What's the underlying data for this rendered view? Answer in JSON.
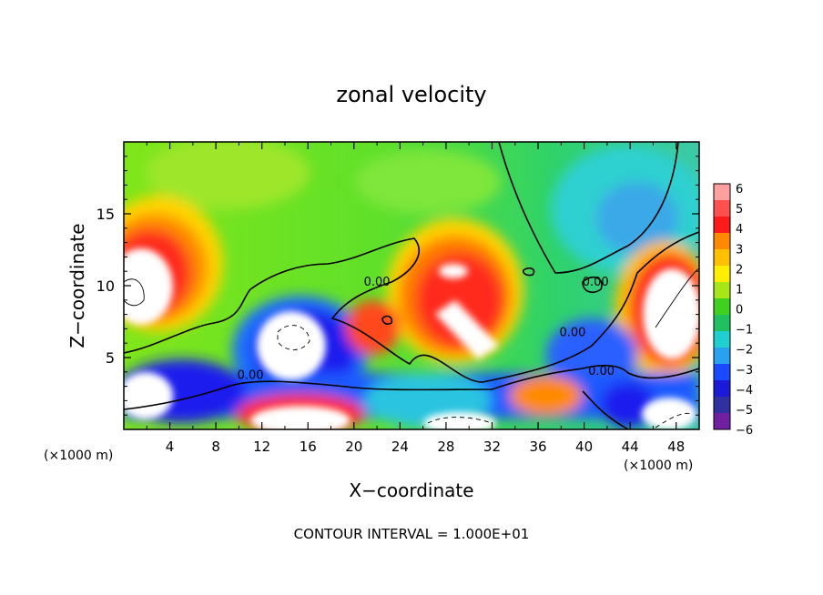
{
  "chart_data": {
    "type": "heatmap",
    "title": "zonal velocity",
    "xlabel": "X−coordinate",
    "ylabel": "Z−coordinate",
    "x_unit_label_left": "(×1000 m)",
    "x_unit_label_right": "(×1000 m)",
    "footer": "CONTOUR INTERVAL = 1.000E+01",
    "xlim": [
      0,
      50
    ],
    "ylim": [
      0,
      20
    ],
    "x_ticks": [
      "4",
      "8",
      "12",
      "16",
      "20",
      "24",
      "28",
      "32",
      "36",
      "40",
      "44",
      "48"
    ],
    "y_ticks": [
      "5",
      "10",
      "15"
    ],
    "colorbar": {
      "ticks": [
        "6",
        "5",
        "4",
        "3",
        "2",
        "1",
        "0",
        "−1",
        "−2",
        "−3",
        "−4",
        "−5",
        "−6"
      ],
      "range": [
        -6,
        6
      ]
    },
    "contour_labels": [
      {
        "text": "0.00",
        "x": 22,
        "y": 10
      },
      {
        "text": "0.00",
        "x": 11,
        "y": 3.5
      },
      {
        "text": "0.00",
        "x": 39,
        "y": 6.5
      },
      {
        "text": "0.00",
        "x": 41,
        "y": 10
      },
      {
        "text": "0.00",
        "x": 41.5,
        "y": 3.8
      }
    ]
  }
}
